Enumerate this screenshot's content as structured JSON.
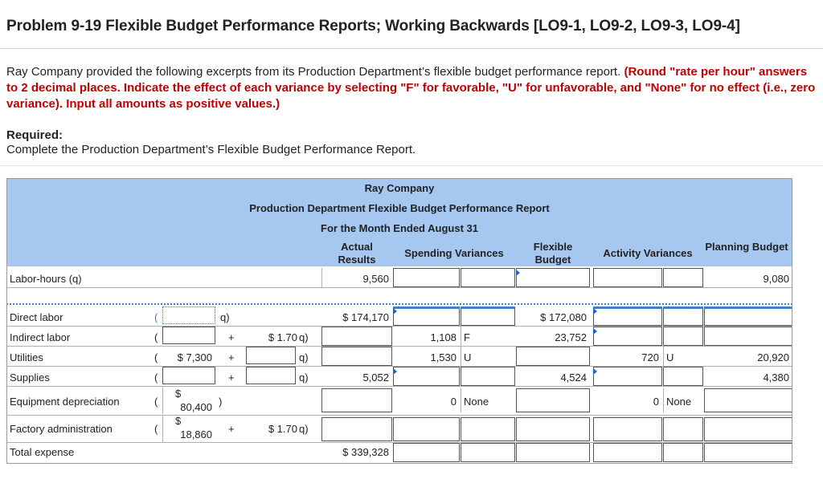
{
  "problem_title": "Problem 9-19 Flexible Budget Performance Reports; Working Backwards [LO9-1, LO9-2, LO9-3, LO9-4]",
  "instructions_plain": "Ray Company provided the following excerpts from its Production Department’s flexible budget performance report.",
  "instructions_red": "(Round \"rate per hour\" answers to 2 decimal places. Indicate the effect of each variance by selecting \"F\" for favorable, \"U\" for unfavorable, and \"None\" for no effect (i.e., zero variance). Input all amounts as positive values.)",
  "required_label": "Required:",
  "required_text": "Complete the Production Department’s Flexible Budget Performance Report.",
  "report": {
    "company": "Ray Company",
    "name": "Production Department Flexible Budget Performance Report",
    "period": "For the Month Ended August 31",
    "col_actual": "Actual Results",
    "col_spending": "Spending Variances",
    "col_flexible": "Flexible Budget",
    "col_activity": "Activity Variances",
    "col_planning": "Planning Budget",
    "labor_hours_label": "Labor-hours (q)",
    "labor_actual": "9,560",
    "labor_planning": "9,080",
    "rows": [
      {
        "label": "Direct labor",
        "actual": "$  174,170",
        "flexible": "$  172,080"
      },
      {
        "label": "Indirect labor",
        "rate": "$ 1.70",
        "spend_var": "1,108",
        "spend_eff": "F",
        "flexible": "23,752"
      },
      {
        "label": "Utilities",
        "fixed": "$ 7,300",
        "spend_var": "1,530",
        "spend_eff": "U",
        "act_var": "720",
        "act_eff": "U",
        "planning": "20,920"
      },
      {
        "label": "Supplies",
        "actual": "5,052",
        "flexible": "4,524",
        "planning": "4,380"
      },
      {
        "label": "Equipment depreciation",
        "fixed_dollar": "$",
        "fixed": "80,400",
        "spend_var": "0",
        "spend_eff": "None",
        "act_var": "0",
        "act_eff": "None"
      },
      {
        "label": "Factory administration",
        "fixed_dollar": "$",
        "fixed": "18,860",
        "rate": "$ 1.70"
      },
      {
        "label": "Total expense",
        "actual": "$  339,328"
      }
    ],
    "q_suffix": "q)",
    "plus": "+"
  }
}
